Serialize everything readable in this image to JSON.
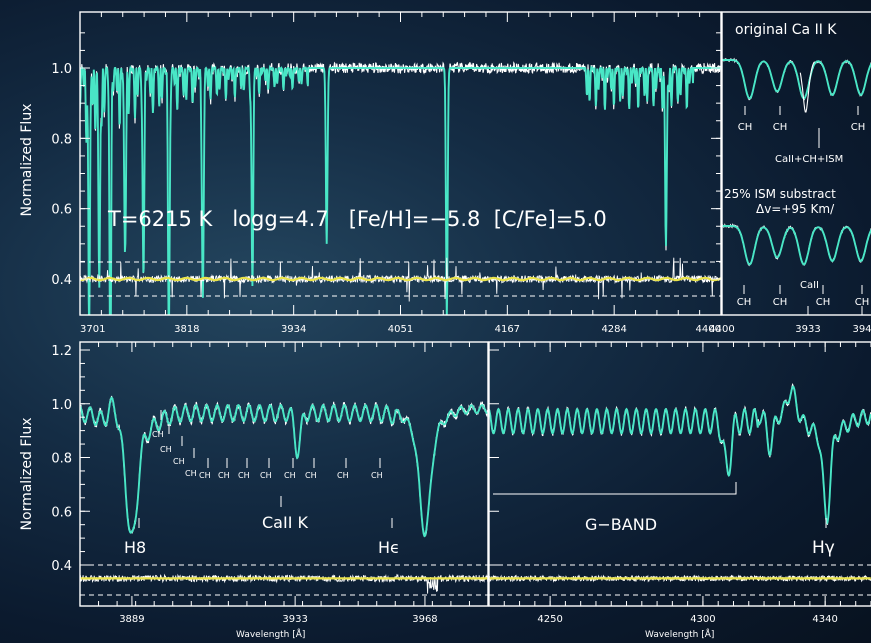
{
  "chart_data": [
    {
      "type": "line",
      "id": "top-main",
      "ylabel": "Normalized Flux",
      "xlim": [
        3701,
        4400
      ],
      "ylim": [
        0.36,
        1.15
      ],
      "x_ticks": [
        "3701",
        "3818",
        "3934",
        "4051",
        "4167",
        "4284",
        "4400"
      ],
      "y_ticks": [
        "1.0",
        "0.8",
        "0.6",
        "0.4"
      ],
      "series": [
        {
          "role": "observed",
          "color": "#ffffff"
        },
        {
          "role": "model",
          "color": "#49e6c6"
        },
        {
          "role": "residual",
          "color": "#e8e24a"
        }
      ],
      "annotation": "T=6215 K   logg=4.7   [Fe/H]=−5.8  [C/Fe]=5.0",
      "deep_lines": [
        3711,
        3722,
        3734,
        3750,
        3770,
        3798,
        3835,
        3889,
        3970,
        4101,
        4340
      ]
    },
    {
      "type": "line",
      "id": "top-inset",
      "xlim": [
        3925,
        3945
      ],
      "x_ticks": [
        "3933",
        "394"
      ],
      "texts": {
        "title": "original Ca II K",
        "upper_lines": [
          "CH",
          "CH",
          "CH"
        ],
        "upper_note": "CaII+CH+ISM",
        "sub1": "25% ISM substract",
        "sub2": "Δv=+95 Km/",
        "lower_lines": [
          "CH",
          "CH",
          "CH",
          "CH"
        ],
        "lower_note": "CaII"
      }
    },
    {
      "type": "line",
      "id": "bottom-left",
      "ylabel": "Normalized Flux",
      "xlabel": "Wavelength [Å]",
      "xlim": [
        3875,
        3985
      ],
      "ylim": [
        0.32,
        1.2
      ],
      "x_ticks": [
        "3889",
        "3933",
        "3968"
      ],
      "y_ticks": [
        "1.2",
        "1.0",
        "0.8",
        "0.6",
        "0.4"
      ],
      "line_ids": {
        "h8": "H8",
        "cak": "CaII K",
        "he": "Hϵ"
      },
      "ch_marks": [
        "CH",
        "CH",
        "CH",
        "CH",
        "CH",
        "CH",
        "CH",
        "CH",
        "CH",
        "CH",
        "CH",
        "CH"
      ]
    },
    {
      "type": "line",
      "id": "bottom-right",
      "xlabel": "Wavelength [Å]",
      "xlim": [
        4230,
        4355
      ],
      "x_ticks": [
        "4250",
        "4300",
        "4340"
      ],
      "line_ids": {
        "gband": "G−BAND",
        "hg": "Hγ"
      }
    }
  ]
}
